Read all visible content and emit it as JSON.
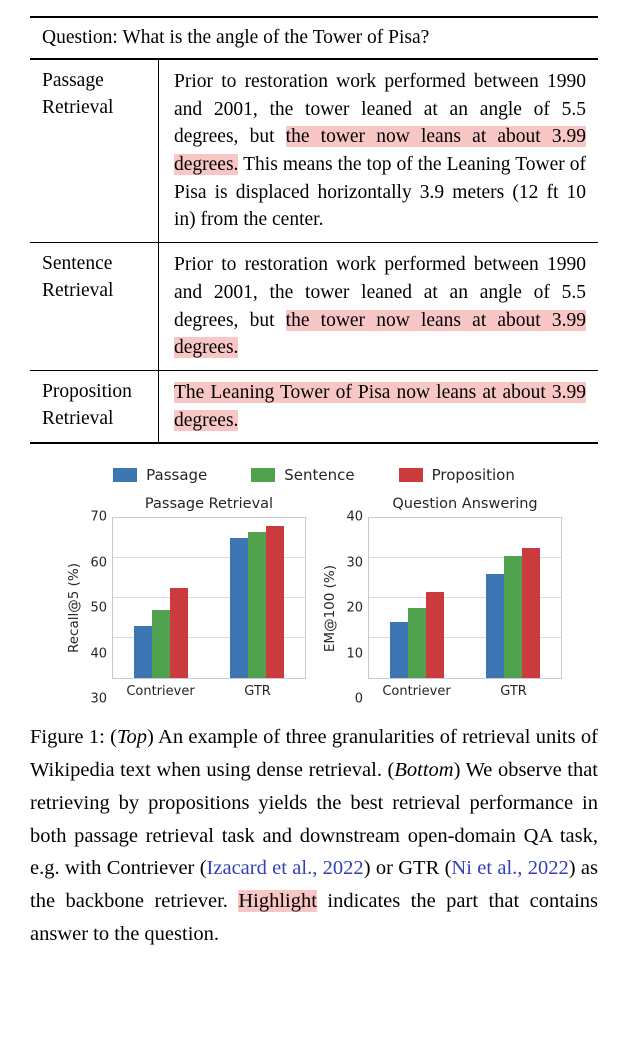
{
  "table": {
    "question": "Question: What is the angle of the Tower of Pisa?",
    "rows": [
      {
        "label": "Passage Retrieval",
        "segments": [
          {
            "text": "Prior to restoration work performed between 1990 and 2001, the tower leaned at an angle of 5.5 degrees, but ",
            "highlight": false
          },
          {
            "text": "the tower now leans at about 3.99 degrees.",
            "highlight": true
          },
          {
            "text": " This means the top of the Leaning Tower of Pisa is displaced horizontally 3.9 meters (12 ft 10 in) from the center.",
            "highlight": false
          }
        ]
      },
      {
        "label": "Sentence Retrieval",
        "segments": [
          {
            "text": "Prior to restoration work performed between 1990 and 2001, the tower leaned at an angle of 5.5 degrees, but ",
            "highlight": false
          },
          {
            "text": "the tower now leans at about 3.99 degrees.",
            "highlight": true
          }
        ]
      },
      {
        "label": "Proposition Retrieval",
        "segments": [
          {
            "text": "The Leaning Tower of Pisa now leans at about 3.99 degrees.",
            "highlight": true
          }
        ]
      }
    ]
  },
  "legend": {
    "items": [
      {
        "label": "Passage",
        "color": "#3d76b2"
      },
      {
        "label": "Sentence",
        "color": "#51a24f"
      },
      {
        "label": "Proposition",
        "color": "#cb3b3e"
      }
    ]
  },
  "chart_data": [
    {
      "type": "bar",
      "title": "Passage Retrieval",
      "ylabel": "Recall@5 (%)",
      "categories": [
        "Contriever",
        "GTR"
      ],
      "series": [
        {
          "name": "Passage",
          "color": "#3d76b2",
          "values": [
            43,
            65
          ]
        },
        {
          "name": "Sentence",
          "color": "#51a24f",
          "values": [
            47,
            66.5
          ]
        },
        {
          "name": "Proposition",
          "color": "#cb3b3e",
          "values": [
            52.5,
            68
          ]
        }
      ],
      "ylim": [
        30,
        70
      ],
      "yticks": [
        30,
        40,
        50,
        60,
        70
      ],
      "grid": true,
      "legend_position": "shared-top"
    },
    {
      "type": "bar",
      "title": "Question Answering",
      "ylabel": "EM@100 (%)",
      "categories": [
        "Contriever",
        "GTR"
      ],
      "series": [
        {
          "name": "Passage",
          "color": "#3d76b2",
          "values": [
            14,
            26
          ]
        },
        {
          "name": "Sentence",
          "color": "#51a24f",
          "values": [
            17.5,
            30.5
          ]
        },
        {
          "name": "Proposition",
          "color": "#cb3b3e",
          "values": [
            21.5,
            32.5
          ]
        }
      ],
      "ylim": [
        0,
        40
      ],
      "yticks": [
        0,
        10,
        20,
        30,
        40
      ],
      "grid": true,
      "legend_position": "shared-top"
    }
  ],
  "caption": {
    "segments": [
      {
        "text": "Figure 1: (",
        "style": "plain"
      },
      {
        "text": "Top",
        "style": "italic"
      },
      {
        "text": ") An example of three granularities of retrieval units of Wikipedia text when using dense retrieval. (",
        "style": "plain"
      },
      {
        "text": "Bottom",
        "style": "italic"
      },
      {
        "text": ") We observe that retrieving by propositions yields the best retrieval performance in both passage retrieval task and downstream open-domain QA task, e.g. with Contriever (",
        "style": "plain"
      },
      {
        "text": "Izacard et al., 2022",
        "style": "link"
      },
      {
        "text": ") or GTR (",
        "style": "plain"
      },
      {
        "text": "Ni et al., 2022",
        "style": "link"
      },
      {
        "text": ") as the backbone retriever. ",
        "style": "plain"
      },
      {
        "text": "Highlight",
        "style": "highlight"
      },
      {
        "text": " indicates the part that contains answer to the question.",
        "style": "plain"
      }
    ]
  },
  "colors": {
    "answer_highlight": "#f8c6c5",
    "citation_link": "#3340bd",
    "passage_bar": "#3d76b2",
    "sentence_bar": "#51a24f",
    "proposition_bar": "#cb3b3e"
  }
}
